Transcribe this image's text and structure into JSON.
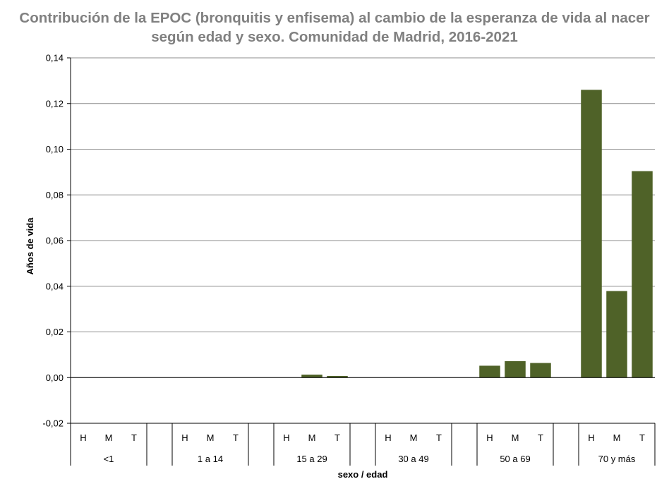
{
  "chart_data": {
    "type": "bar",
    "title": "Contribución de la EPOC (bronquitis y enfisema) al cambio de la esperanza de vida al nacer según edad y sexo. Comunidad de Madrid, 2016-2021",
    "xlabel": "sexo / edad",
    "ylabel": "Años de vida",
    "ylim": [
      -0.02,
      0.14
    ],
    "yticks": [
      "-0,02",
      "0,00",
      "0,02",
      "0,04",
      "0,06",
      "0,08",
      "0,10",
      "0,12",
      "0,14"
    ],
    "grid": true,
    "legend": "none",
    "bar_color": "#4f6228",
    "groups": [
      {
        "label": "<1",
        "categories": [
          "H",
          "M",
          "T"
        ],
        "values": [
          0.0,
          0.0,
          0.0
        ]
      },
      {
        "label": "1 a 14",
        "categories": [
          "H",
          "M",
          "T"
        ],
        "values": [
          0.0,
          0.0,
          0.0
        ]
      },
      {
        "label": "15 a 29",
        "categories": [
          "H",
          "M",
          "T"
        ],
        "values": [
          0.0,
          0.0013,
          0.0007
        ]
      },
      {
        "label": "30 a 49",
        "categories": [
          "H",
          "M",
          "T"
        ],
        "values": [
          0.0,
          0.0,
          0.0
        ]
      },
      {
        "label": "50 a 69",
        "categories": [
          "H",
          "M",
          "T"
        ],
        "values": [
          0.0052,
          0.0072,
          0.0064
        ]
      },
      {
        "label": "70 y más",
        "categories": [
          "H",
          "M",
          "T"
        ],
        "values": [
          0.126,
          0.0379,
          0.0904
        ]
      }
    ]
  }
}
